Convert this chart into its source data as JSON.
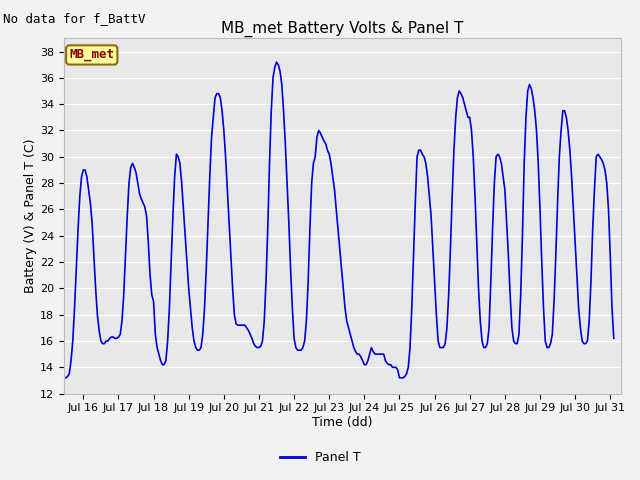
{
  "title": "MB_met Battery Volts & Panel T",
  "no_data_text": "No data for f_BattV",
  "xlabel": "Time (dd)",
  "ylabel": "Battery (V) & Panel T (C)",
  "ylim": [
    12,
    39
  ],
  "yticks": [
    12,
    14,
    16,
    18,
    20,
    22,
    24,
    26,
    28,
    30,
    32,
    34,
    36,
    38
  ],
  "xlim_start": 15.45,
  "xlim_end": 31.3,
  "xtick_labels": [
    "Jul 16",
    "Jul 17",
    "Jul 18",
    "Jul 19",
    "Jul 20",
    "Jul 21",
    "Jul 22",
    "Jul 23",
    "Jul 24",
    "Jul 25",
    "Jul 26",
    "Jul 27",
    "Jul 28",
    "Jul 29",
    "Jul 30",
    "Jul 31"
  ],
  "xtick_positions": [
    16,
    17,
    18,
    19,
    20,
    21,
    22,
    23,
    24,
    25,
    26,
    27,
    28,
    29,
    30,
    31
  ],
  "line_color": "#0000dd",
  "line_width": 1.2,
  "legend_label": "Panel T",
  "mb_met_label": "MB_met",
  "mb_met_label_color": "#8b0000",
  "mb_met_box_color": "#ffff99",
  "mb_met_border_color": "#8b6914",
  "bg_color": "#e8e8e8",
  "fig_bg_color": "#f2f2f2",
  "title_fontsize": 11,
  "axis_label_fontsize": 9,
  "tick_fontsize": 8,
  "legend_fontsize": 9,
  "no_data_fontsize": 9,
  "panel_t_x": [
    15.5,
    15.55,
    15.6,
    15.65,
    15.7,
    15.75,
    15.8,
    15.85,
    15.9,
    15.95,
    16.0,
    16.05,
    16.1,
    16.15,
    16.2,
    16.25,
    16.3,
    16.35,
    16.4,
    16.45,
    16.5,
    16.55,
    16.6,
    16.65,
    16.7,
    16.75,
    16.8,
    16.85,
    16.9,
    16.95,
    17.0,
    17.05,
    17.1,
    17.15,
    17.2,
    17.25,
    17.3,
    17.35,
    17.4,
    17.45,
    17.5,
    17.55,
    17.6,
    17.65,
    17.7,
    17.75,
    17.8,
    17.85,
    17.9,
    17.95,
    18.0,
    18.05,
    18.1,
    18.15,
    18.2,
    18.25,
    18.3,
    18.35,
    18.4,
    18.45,
    18.5,
    18.55,
    18.6,
    18.65,
    18.7,
    18.75,
    18.8,
    18.85,
    18.9,
    18.95,
    19.0,
    19.05,
    19.1,
    19.15,
    19.2,
    19.25,
    19.3,
    19.35,
    19.4,
    19.45,
    19.5,
    19.55,
    19.6,
    19.65,
    19.7,
    19.75,
    19.8,
    19.85,
    19.9,
    19.95,
    20.0,
    20.05,
    20.1,
    20.15,
    20.2,
    20.25,
    20.3,
    20.35,
    20.4,
    20.45,
    20.5,
    20.55,
    20.6,
    20.65,
    20.7,
    20.75,
    20.8,
    20.85,
    20.9,
    20.95,
    21.0,
    21.05,
    21.1,
    21.15,
    21.2,
    21.25,
    21.3,
    21.35,
    21.4,
    21.45,
    21.5,
    21.55,
    21.6,
    21.65,
    21.7,
    21.75,
    21.8,
    21.85,
    21.9,
    21.95,
    22.0,
    22.05,
    22.1,
    22.15,
    22.2,
    22.25,
    22.3,
    22.35,
    22.4,
    22.45,
    22.5,
    22.55,
    22.6,
    22.65,
    22.7,
    22.75,
    22.8,
    22.85,
    22.9,
    22.95,
    23.0,
    23.05,
    23.1,
    23.15,
    23.2,
    23.25,
    23.3,
    23.35,
    23.4,
    23.45,
    23.5,
    23.55,
    23.6,
    23.65,
    23.7,
    23.75,
    23.8,
    23.85,
    23.9,
    23.95,
    24.0,
    24.05,
    24.1,
    24.15,
    24.2,
    24.25,
    24.3,
    24.35,
    24.4,
    24.45,
    24.5,
    24.55,
    24.6,
    24.65,
    24.7,
    24.75,
    24.8,
    24.85,
    24.9,
    24.95,
    25.0,
    25.05,
    25.1,
    25.15,
    25.2,
    25.25,
    25.3,
    25.35,
    25.4,
    25.45,
    25.5,
    25.55,
    25.6,
    25.65,
    25.7,
    25.75,
    25.8,
    25.85,
    25.9,
    25.95,
    26.0,
    26.05,
    26.1,
    26.15,
    26.2,
    26.25,
    26.3,
    26.35,
    26.4,
    26.45,
    26.5,
    26.55,
    26.6,
    26.65,
    26.7,
    26.75,
    26.8,
    26.85,
    26.9,
    26.95,
    27.0,
    27.05,
    27.1,
    27.15,
    27.2,
    27.25,
    27.3,
    27.35,
    27.4,
    27.45,
    27.5,
    27.55,
    27.6,
    27.65,
    27.7,
    27.75,
    27.8,
    27.85,
    27.9,
    27.95,
    28.0,
    28.05,
    28.1,
    28.15,
    28.2,
    28.25,
    28.3,
    28.35,
    28.4,
    28.45,
    28.5,
    28.55,
    28.6,
    28.65,
    28.7,
    28.75,
    28.8,
    28.85,
    28.9,
    28.95,
    29.0,
    29.05,
    29.1,
    29.15,
    29.2,
    29.25,
    29.3,
    29.35,
    29.4,
    29.45,
    29.5,
    29.55,
    29.6,
    29.65,
    29.7,
    29.75,
    29.8,
    29.85,
    29.9,
    29.95,
    30.0,
    30.05,
    30.1,
    30.15,
    30.2,
    30.25,
    30.3,
    30.35,
    30.4,
    30.45,
    30.5,
    30.55,
    30.6,
    30.65,
    30.7,
    30.75,
    30.8,
    30.85,
    30.9,
    30.95,
    31.0,
    31.05,
    31.1
  ],
  "panel_t_y": [
    13.2,
    13.3,
    13.5,
    14.5,
    16.0,
    18.5,
    21.5,
    24.5,
    27.0,
    28.5,
    29.0,
    29.0,
    28.5,
    27.5,
    26.5,
    25.0,
    22.5,
    20.0,
    18.0,
    16.8,
    16.0,
    15.8,
    15.8,
    16.0,
    16.0,
    16.2,
    16.3,
    16.3,
    16.2,
    16.2,
    16.3,
    16.5,
    17.5,
    19.5,
    22.5,
    25.5,
    28.0,
    29.2,
    29.5,
    29.2,
    28.8,
    28.0,
    27.2,
    26.8,
    26.5,
    26.2,
    25.5,
    23.5,
    21.0,
    19.5,
    19.0,
    16.5,
    15.5,
    15.0,
    14.5,
    14.2,
    14.2,
    14.5,
    16.0,
    18.5,
    22.0,
    25.5,
    28.5,
    30.2,
    30.0,
    29.5,
    28.0,
    26.0,
    24.0,
    22.0,
    20.0,
    18.5,
    17.0,
    16.0,
    15.5,
    15.3,
    15.3,
    15.5,
    16.5,
    18.5,
    21.5,
    25.0,
    28.5,
    31.5,
    33.0,
    34.5,
    34.8,
    34.8,
    34.5,
    33.5,
    32.0,
    30.0,
    27.5,
    25.0,
    22.5,
    20.0,
    18.0,
    17.3,
    17.2,
    17.2,
    17.2,
    17.2,
    17.2,
    17.0,
    16.8,
    16.5,
    16.2,
    15.8,
    15.6,
    15.5,
    15.5,
    15.6,
    16.0,
    17.5,
    20.5,
    24.5,
    29.5,
    33.5,
    36.0,
    36.8,
    37.2,
    37.0,
    36.5,
    35.5,
    33.5,
    31.0,
    28.0,
    25.0,
    21.5,
    18.5,
    16.2,
    15.5,
    15.3,
    15.3,
    15.3,
    15.5,
    16.0,
    17.5,
    20.5,
    24.5,
    28.0,
    29.5,
    30.0,
    31.5,
    32.0,
    31.8,
    31.5,
    31.2,
    31.0,
    30.5,
    30.2,
    29.5,
    28.5,
    27.5,
    26.0,
    24.5,
    23.0,
    21.5,
    20.0,
    18.5,
    17.5,
    17.0,
    16.5,
    16.0,
    15.5,
    15.2,
    15.0,
    15.0,
    14.8,
    14.5,
    14.2,
    14.2,
    14.5,
    15.0,
    15.5,
    15.2,
    15.0,
    15.0,
    15.0,
    15.0,
    15.0,
    15.0,
    14.5,
    14.3,
    14.2,
    14.2,
    14.0,
    14.0,
    14.0,
    13.8,
    13.2,
    13.2,
    13.2,
    13.3,
    13.5,
    14.0,
    15.5,
    18.5,
    22.5,
    26.5,
    30.0,
    30.5,
    30.5,
    30.2,
    30.0,
    29.5,
    28.5,
    27.0,
    25.5,
    23.0,
    20.5,
    18.0,
    16.0,
    15.5,
    15.5,
    15.5,
    15.8,
    17.0,
    19.5,
    23.0,
    27.0,
    30.5,
    33.0,
    34.5,
    35.0,
    34.8,
    34.5,
    34.0,
    33.5,
    33.0,
    33.0,
    32.0,
    30.0,
    27.0,
    23.5,
    20.0,
    17.5,
    16.0,
    15.5,
    15.5,
    15.8,
    17.0,
    20.5,
    24.5,
    28.0,
    30.0,
    30.2,
    30.0,
    29.5,
    28.5,
    27.5,
    25.0,
    22.5,
    19.5,
    17.0,
    16.0,
    15.8,
    15.8,
    16.5,
    19.5,
    24.0,
    29.5,
    33.0,
    35.0,
    35.5,
    35.2,
    34.5,
    33.5,
    32.0,
    29.5,
    26.0,
    22.0,
    18.5,
    16.0,
    15.5,
    15.5,
    15.8,
    16.5,
    19.0,
    22.5,
    26.5,
    30.0,
    32.0,
    33.5,
    33.5,
    33.0,
    32.0,
    30.5,
    28.5,
    26.0,
    23.5,
    21.0,
    18.5,
    17.0,
    16.0,
    15.8,
    15.8,
    16.0,
    17.5,
    20.5,
    24.5,
    27.5,
    30.0,
    30.2,
    30.0,
    29.8,
    29.5,
    29.0,
    28.0,
    26.0,
    22.5,
    18.5,
    16.2
  ]
}
